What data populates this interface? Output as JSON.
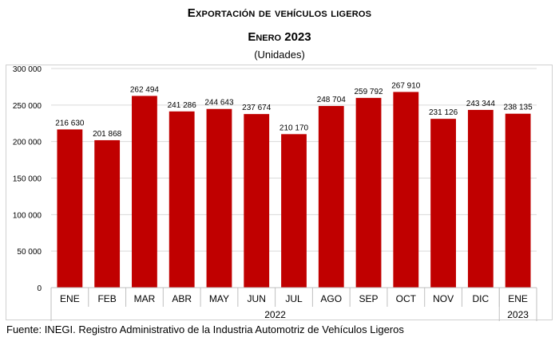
{
  "header": {
    "title": "Exportación de vehículos ligeros",
    "subtitle": "Enero 2023",
    "units": "(Unidades)"
  },
  "source": "Fuente: INEGI. Registro Administrativo de la Industria Automotriz de Vehículos Ligeros",
  "colors": {
    "bar": "#c00000",
    "grid": "#d9d9d9",
    "axis": "#bfbfbf"
  },
  "chart_data": {
    "type": "bar",
    "categories": [
      "ENE",
      "FEB",
      "MAR",
      "ABR",
      "MAY",
      "JUN",
      "JUL",
      "AGO",
      "SEP",
      "OCT",
      "NOV",
      "DIC",
      "ENE"
    ],
    "values": [
      216630,
      201868,
      262494,
      241286,
      244643,
      237674,
      210170,
      248704,
      259792,
      267910,
      231126,
      243344,
      238135
    ],
    "value_labels": [
      "216 630",
      "201 868",
      "262 494",
      "241 286",
      "244 643",
      "237 674",
      "210 170",
      "248 704",
      "259 792",
      "267 910",
      "231 126",
      "243 344",
      "238 135"
    ],
    "year_groups": [
      {
        "label": "2022",
        "count": 12
      },
      {
        "label": "2023",
        "count": 1
      }
    ],
    "ylim": [
      0,
      300000
    ],
    "yticks": [
      0,
      50000,
      100000,
      150000,
      200000,
      250000,
      300000
    ],
    "ytick_labels": [
      "0",
      "50 000",
      "100 000",
      "150 000",
      "200 000",
      "250 000",
      "300 000"
    ],
    "grid": true
  }
}
